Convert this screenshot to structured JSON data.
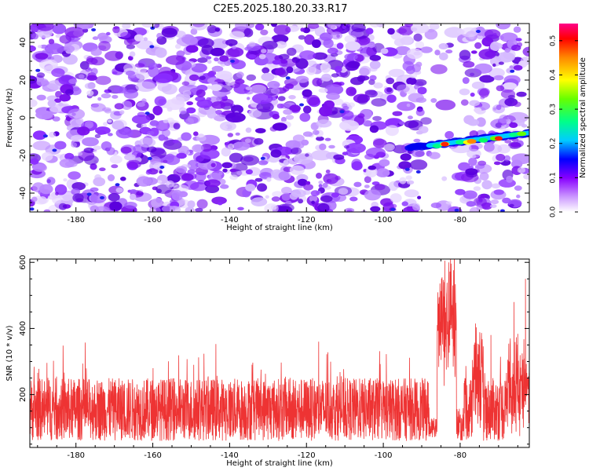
{
  "title": "C2E5.2025.180.20.33.R17",
  "chart_data": [
    {
      "type": "heatmap",
      "xlabel": "Height of straight line (km)",
      "ylabel": "Frequency (Hz)",
      "xlim": [
        -192,
        -62
      ],
      "ylim": [
        -50,
        50
      ],
      "xticks": [
        "-180",
        "-160",
        "-140",
        "-120",
        "-100",
        "-80"
      ],
      "yticks": [
        "-40",
        "-20",
        "0",
        "20",
        "40"
      ],
      "colorbar": {
        "label": "Normalized spectral amplitude",
        "range": [
          0,
          0.55
        ],
        "ticks": [
          "0.0",
          "0.1",
          "0.2",
          "0.3",
          "0.4",
          "0.5"
        ]
      },
      "feature": {
        "description_values": {
          "x_start": -93,
          "x_end": -62,
          "freq_start": -16,
          "freq_end": -8,
          "peak_amplitude": 0.5
        }
      }
    },
    {
      "type": "line",
      "xlabel": "Height of straight line (km)",
      "ylabel": "SNR (10 * v/v)",
      "xlim": [
        -192,
        -62
      ],
      "ylim": [
        40,
        610
      ],
      "xticks": [
        "-180",
        "-160",
        "-140",
        "-120",
        "-100",
        "-80"
      ],
      "yticks": [
        "200",
        "400",
        "600"
      ],
      "series_color": "#ee3333",
      "baseline_range": [
        60,
        250
      ],
      "peaks": [
        {
          "x": -84,
          "y": 605
        },
        {
          "x": -83,
          "y": 600
        },
        {
          "x": -76,
          "y": 415
        },
        {
          "x": -72,
          "y": 380
        },
        {
          "x": -66,
          "y": 480
        },
        {
          "x": -63,
          "y": 550
        }
      ]
    }
  ]
}
